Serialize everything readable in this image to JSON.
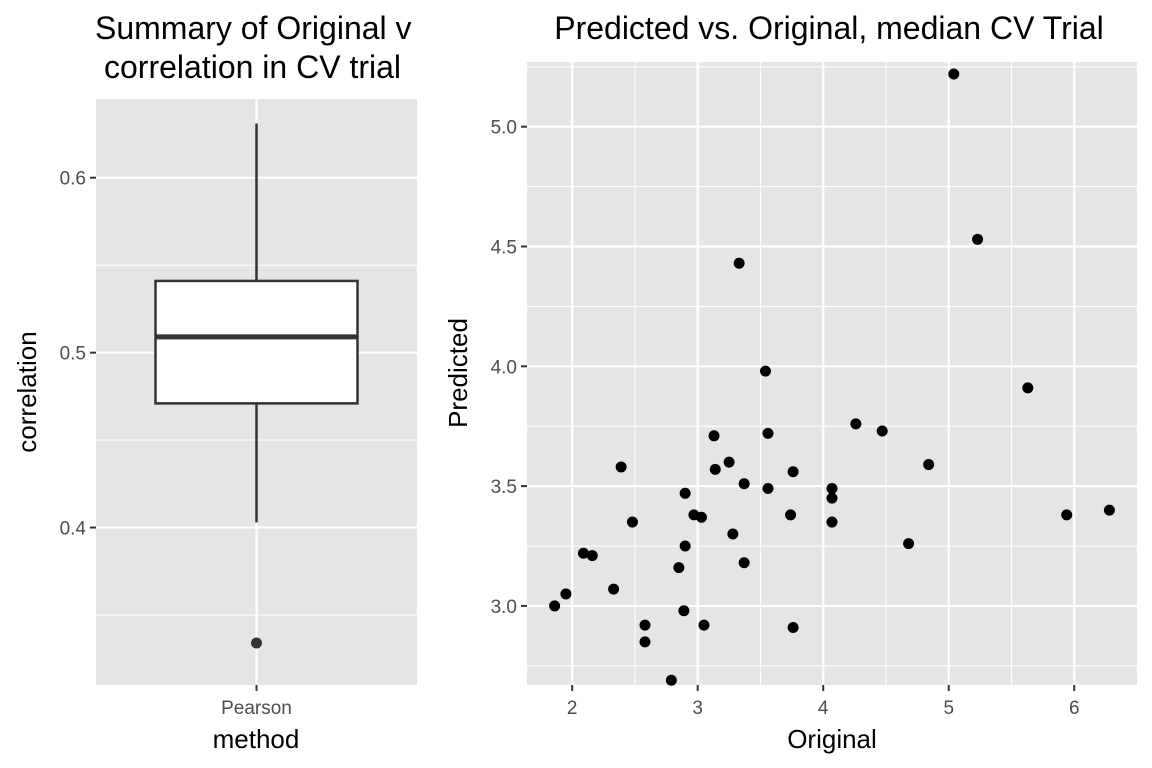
{
  "chart_data": [
    {
      "type": "box",
      "title": "Summary of Original vs. Predicted\ncorrelation in CV trials",
      "title_lines": [
        "Summary of Original v",
        "correlation in CV trial"
      ],
      "xlabel": "method",
      "ylabel": "correlation",
      "categories": [
        "Pearson"
      ],
      "ylim": [
        0.31,
        0.645
      ],
      "yticks": [
        0.4,
        0.5,
        0.6
      ],
      "ytick_labels": [
        "0.4",
        "0.5",
        "0.6"
      ],
      "grid": true,
      "boxes": [
        {
          "category": "Pearson",
          "whisker_low": 0.403,
          "q1": 0.471,
          "median": 0.509,
          "q3": 0.541,
          "whisker_high": 0.631,
          "outliers": [
            0.334
          ]
        }
      ]
    },
    {
      "type": "scatter",
      "title": "Predicted vs. Original, median CV Trial",
      "xlabel": "Original",
      "ylabel": "Predicted",
      "xlim": [
        1.64,
        6.5
      ],
      "ylim": [
        2.67,
        5.27
      ],
      "xticks": [
        2,
        3,
        4,
        5,
        6
      ],
      "xtick_labels": [
        "2",
        "3",
        "4",
        "5",
        "6"
      ],
      "yticks": [
        3.0,
        3.5,
        4.0,
        4.5,
        5.0
      ],
      "ytick_labels": [
        "3.0",
        "3.5",
        "4.0",
        "4.5",
        "5.0"
      ],
      "grid": true,
      "points": [
        {
          "x": 1.86,
          "y": 3.0
        },
        {
          "x": 1.95,
          "y": 3.05
        },
        {
          "x": 2.09,
          "y": 3.22
        },
        {
          "x": 2.16,
          "y": 3.21
        },
        {
          "x": 2.33,
          "y": 3.07
        },
        {
          "x": 2.39,
          "y": 3.58
        },
        {
          "x": 2.48,
          "y": 3.35
        },
        {
          "x": 2.58,
          "y": 2.92
        },
        {
          "x": 2.58,
          "y": 2.85
        },
        {
          "x": 2.79,
          "y": 2.69
        },
        {
          "x": 2.85,
          "y": 3.16
        },
        {
          "x": 2.89,
          "y": 2.98
        },
        {
          "x": 2.9,
          "y": 3.47
        },
        {
          "x": 2.9,
          "y": 3.25
        },
        {
          "x": 2.97,
          "y": 3.38
        },
        {
          "x": 3.03,
          "y": 3.37
        },
        {
          "x": 3.05,
          "y": 2.92
        },
        {
          "x": 3.13,
          "y": 3.71
        },
        {
          "x": 3.14,
          "y": 3.57
        },
        {
          "x": 3.25,
          "y": 3.6
        },
        {
          "x": 3.28,
          "y": 3.3
        },
        {
          "x": 3.33,
          "y": 4.43
        },
        {
          "x": 3.37,
          "y": 3.51
        },
        {
          "x": 3.37,
          "y": 3.18
        },
        {
          "x": 3.54,
          "y": 3.98
        },
        {
          "x": 3.56,
          "y": 3.72
        },
        {
          "x": 3.56,
          "y": 3.49
        },
        {
          "x": 3.74,
          "y": 3.38
        },
        {
          "x": 3.76,
          "y": 3.56
        },
        {
          "x": 3.76,
          "y": 2.91
        },
        {
          "x": 4.07,
          "y": 3.49
        },
        {
          "x": 4.07,
          "y": 3.45
        },
        {
          "x": 4.07,
          "y": 3.35
        },
        {
          "x": 4.26,
          "y": 3.76
        },
        {
          "x": 4.47,
          "y": 3.73
        },
        {
          "x": 4.68,
          "y": 3.26
        },
        {
          "x": 4.84,
          "y": 3.59
        },
        {
          "x": 5.04,
          "y": 5.22
        },
        {
          "x": 5.23,
          "y": 4.53
        },
        {
          "x": 5.63,
          "y": 3.91
        },
        {
          "x": 5.94,
          "y": 3.38
        },
        {
          "x": 6.28,
          "y": 3.4
        }
      ]
    }
  ]
}
